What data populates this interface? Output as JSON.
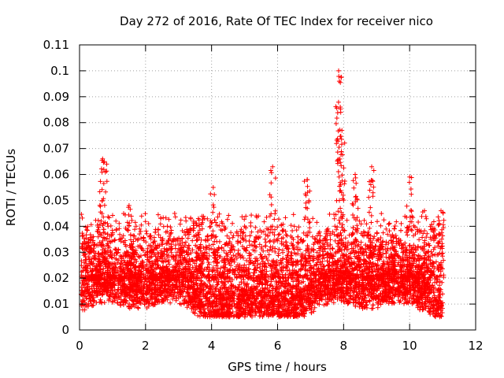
{
  "chart_data": {
    "type": "scatter",
    "title": "Day 272 of 2016, Rate Of TEC Index for receiver nico",
    "xlabel": "GPS time / hours",
    "ylabel": "ROTI / TECUs",
    "xlim": [
      0,
      12
    ],
    "ylim": [
      0,
      0.11
    ],
    "x_ticks": [
      "0",
      "2",
      "4",
      "6",
      "8",
      "10",
      "12"
    ],
    "y_ticks": [
      "0",
      "0.01",
      "0.02",
      "0.03",
      "0.04",
      "0.05",
      "0.06",
      "0.07",
      "0.08",
      "0.09",
      "0.1",
      "0.11"
    ],
    "grid": true,
    "marker": "+",
    "color": "#ff0000",
    "data_span_hours": [
      0.05,
      11.0
    ],
    "series": [
      {
        "name": "ROTI",
        "notable_points": [
          {
            "x": 0.7,
            "y": 0.066
          },
          {
            "x": 0.75,
            "y": 0.065
          },
          {
            "x": 1.5,
            "y": 0.048
          },
          {
            "x": 3.6,
            "y": 0.043
          },
          {
            "x": 4.05,
            "y": 0.055
          },
          {
            "x": 5.85,
            "y": 0.063
          },
          {
            "x": 6.9,
            "y": 0.058
          },
          {
            "x": 7.85,
            "y": 0.1
          },
          {
            "x": 7.87,
            "y": 0.096
          },
          {
            "x": 7.9,
            "y": 0.086
          },
          {
            "x": 7.95,
            "y": 0.077
          },
          {
            "x": 8.35,
            "y": 0.06
          },
          {
            "x": 8.85,
            "y": 0.063
          },
          {
            "x": 10.0,
            "y": 0.059
          },
          {
            "x": 10.45,
            "y": 0.046
          },
          {
            "x": 10.95,
            "y": 0.046
          }
        ],
        "typical_range": [
          0.005,
          0.03
        ]
      }
    ]
  }
}
